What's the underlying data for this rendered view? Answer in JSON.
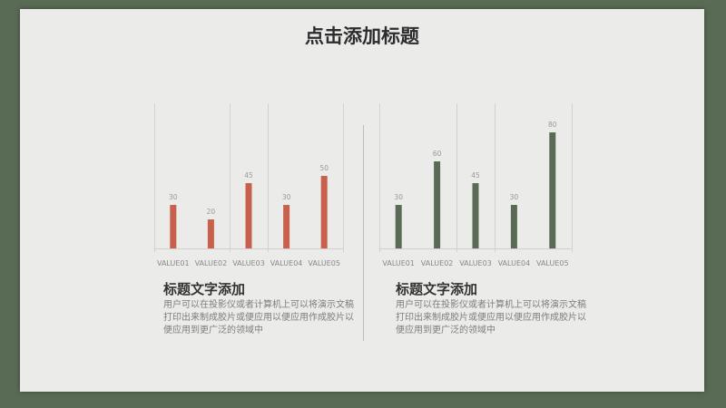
{
  "slide": {
    "title": "点击添加标题"
  },
  "left_panel": {
    "caption_title": "标题文字添加",
    "caption_body": "用户可以在投影仪或者计算机上可以将演示文稿打印出来制成胶片或便应用以便应用作成胶片以便应用到更广泛的领域中"
  },
  "right_panel": {
    "caption_title": "标题文字添加",
    "caption_body": "用户可以在投影仪或者计算机上可以将演示文稿打印出来制成胶片或便应用以便应用作成胶片以便应用到更广泛的领域中"
  },
  "chart_data": [
    {
      "type": "bar",
      "categories": [
        "VALUE01",
        "VALUE02",
        "VALUE03",
        "VALUE04",
        "VALUE05"
      ],
      "values": [
        30,
        20,
        45,
        30,
        50
      ],
      "ylim": [
        0,
        100
      ],
      "color": "#c8604c",
      "grid": false
    },
    {
      "type": "bar",
      "categories": [
        "VALUE01",
        "VALUE02",
        "VALUE03",
        "VALUE04",
        "VALUE05"
      ],
      "values": [
        30,
        60,
        45,
        30,
        80
      ],
      "ylim": [
        0,
        100
      ],
      "color": "#5a6b55",
      "grid": false
    }
  ]
}
